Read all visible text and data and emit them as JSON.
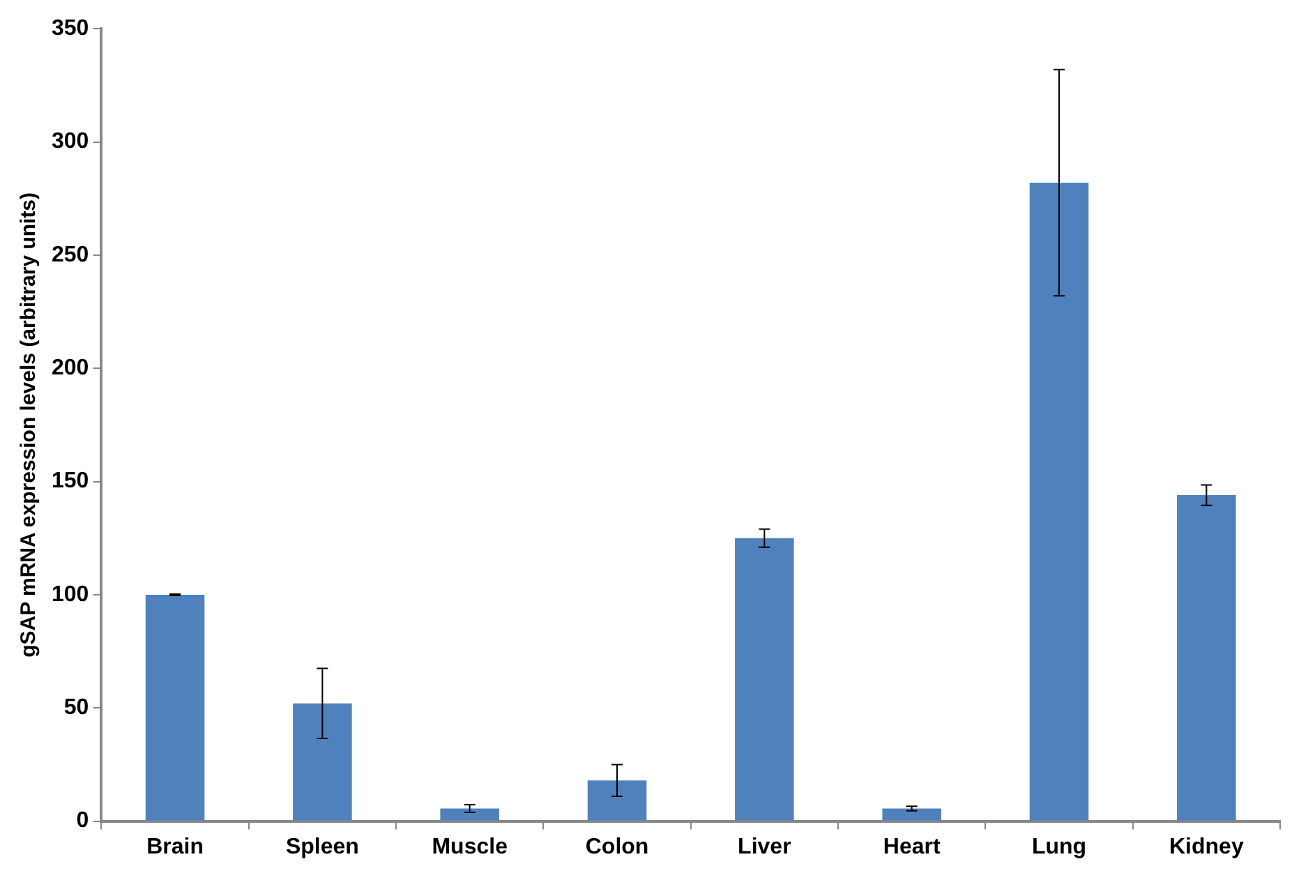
{
  "chart_data": {
    "type": "bar",
    "ylabel": "gSAP mRNA expression levels (arbitrary units)",
    "categories": [
      "Brain",
      "Spleen",
      "Muscle",
      "Colon",
      "Liver",
      "Heart",
      "Lung",
      "Kidney"
    ],
    "values": [
      100,
      52,
      5.6,
      18,
      125,
      5.6,
      282,
      144
    ],
    "errors": [
      0.3,
      15.5,
      1.7,
      7,
      4,
      1,
      50,
      4.5
    ],
    "color": "#4f81bd",
    "ylim": [
      0,
      350
    ],
    "yticks": [
      0,
      50,
      100,
      150,
      200,
      250,
      300,
      350
    ],
    "grid": false,
    "legend": false
  }
}
